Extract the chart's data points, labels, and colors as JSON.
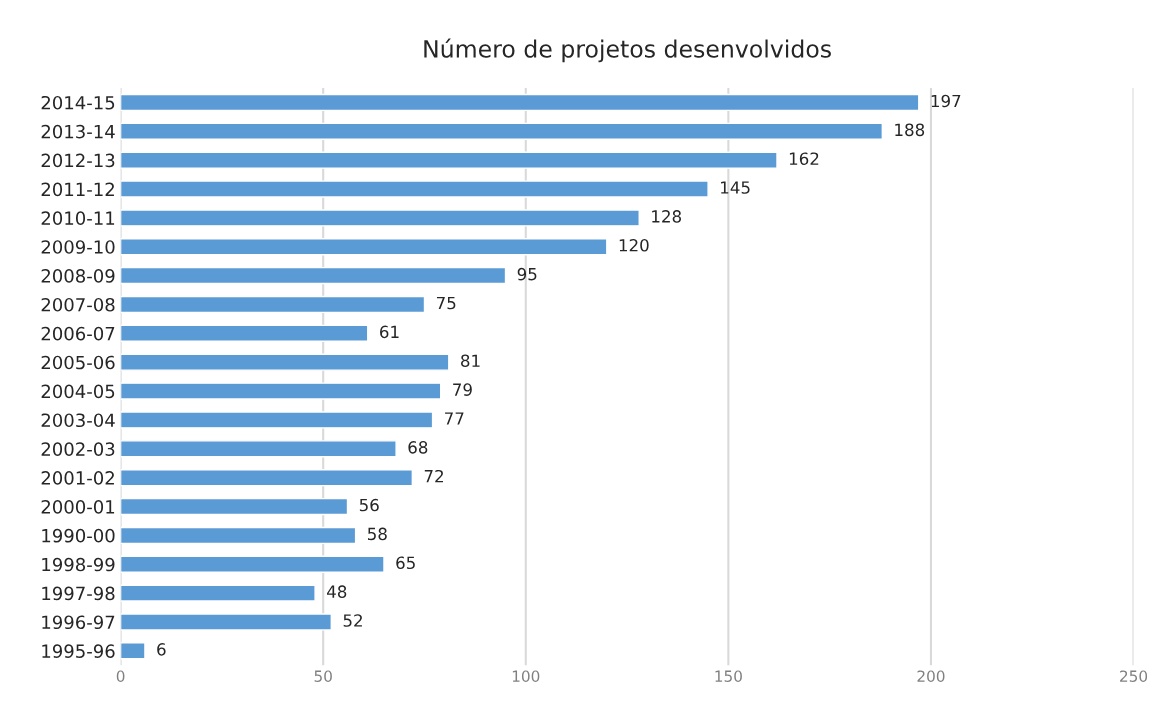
{
  "chart_data": {
    "type": "bar",
    "orientation": "horizontal",
    "title": "Número de projetos desenvolvidos",
    "categories": [
      "2014-15",
      "2013-14",
      "2012-13",
      "2011-12",
      "2010-11",
      "2009-10",
      "2008-09",
      "2007-08",
      "2006-07",
      "2005-06",
      "2004-05",
      "2003-04",
      "2002-03",
      "2001-02",
      "2000-01",
      "1990-00",
      "1998-99",
      "1997-98",
      "1996-97",
      "1995-96"
    ],
    "values": [
      197,
      188,
      162,
      145,
      128,
      120,
      95,
      75,
      61,
      81,
      79,
      77,
      68,
      72,
      56,
      58,
      65,
      48,
      52,
      6
    ],
    "color": "#5b9bd5",
    "xlim": [
      0,
      250
    ],
    "xticks": [
      0,
      50,
      100,
      150,
      200,
      250
    ],
    "grid": "x",
    "data_labels": true,
    "legend": false
  }
}
